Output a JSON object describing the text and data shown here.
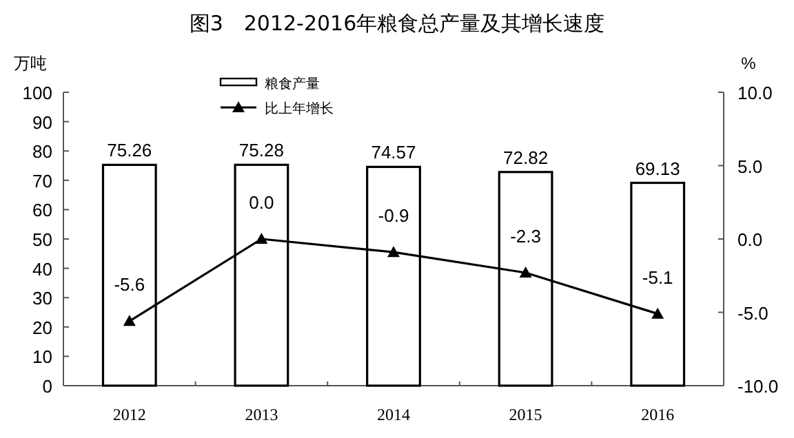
{
  "chart_data": {
    "type": "bar",
    "title": "图3　2012-2016年粮食总产量及其增长速度",
    "ylabel": "万吨",
    "y2label": "%",
    "categories": [
      "2012",
      "2013",
      "2014",
      "2015",
      "2016"
    ],
    "series": [
      {
        "name": "粮食产量",
        "color": "#ffffff",
        "values": [
          75.26,
          75.28,
          74.57,
          72.82,
          69.13
        ],
        "value_labels": [
          "75.26",
          "75.28",
          "74.57",
          "72.82",
          "69.13"
        ]
      },
      {
        "name": "比上年增长",
        "type": "line",
        "axis": "y2",
        "color": "#000000",
        "marker": "triangle",
        "values": [
          -5.6,
          0.0,
          -0.9,
          -2.3,
          -5.1
        ],
        "value_labels": [
          "-5.6",
          "0.0",
          "-0.9",
          "-2.3",
          "-5.1"
        ]
      }
    ],
    "ylim": [
      0,
      100
    ],
    "yticks": [
      0,
      10,
      20,
      30,
      40,
      50,
      60,
      70,
      80,
      90,
      100
    ],
    "y2lim": [
      -10,
      10
    ],
    "y2ticks": [
      {
        "value": -10,
        "label": "-10.0"
      },
      {
        "value": -5,
        "label": "-5.0"
      },
      {
        "value": 0,
        "label": "0.0"
      },
      {
        "value": 5,
        "label": "5.0"
      },
      {
        "value": 10,
        "label": "10.0"
      }
    ],
    "legend": "top left",
    "grid": false
  }
}
